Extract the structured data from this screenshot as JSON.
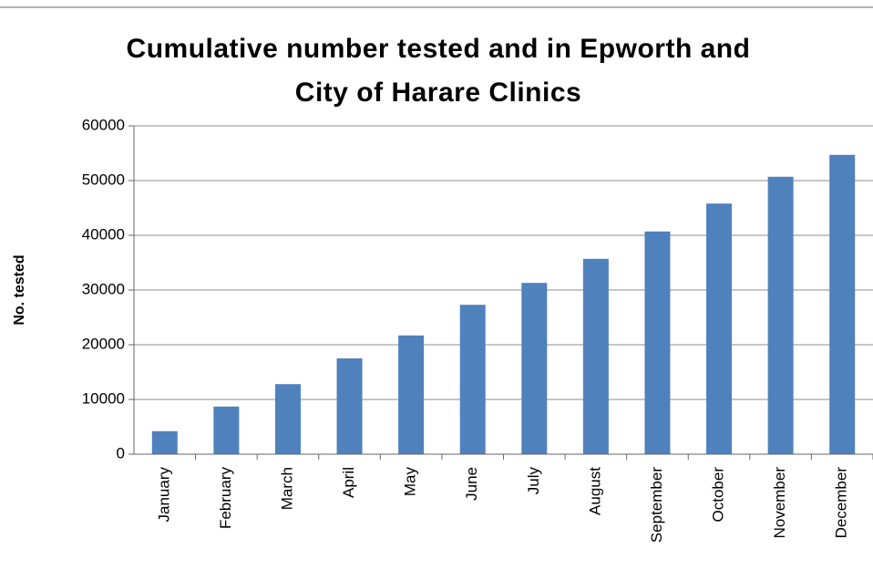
{
  "chart_data": {
    "type": "bar",
    "title": "Cumulative number tested and in Epworth and City of Harare Clinics",
    "y_label": "No. tested",
    "categories": [
      "January",
      "February",
      "March",
      "April",
      "May",
      "June",
      "July",
      "August",
      "September",
      "October",
      "November",
      "December"
    ],
    "values": [
      4200,
      8700,
      12800,
      17500,
      21700,
      27300,
      31300,
      35700,
      40700,
      45800,
      50700,
      54700
    ],
    "color": "#4f81bd",
    "ylim": [
      0,
      60000
    ],
    "yticks": [
      0,
      10000,
      20000,
      30000,
      40000,
      50000,
      60000
    ],
    "grid": true
  }
}
